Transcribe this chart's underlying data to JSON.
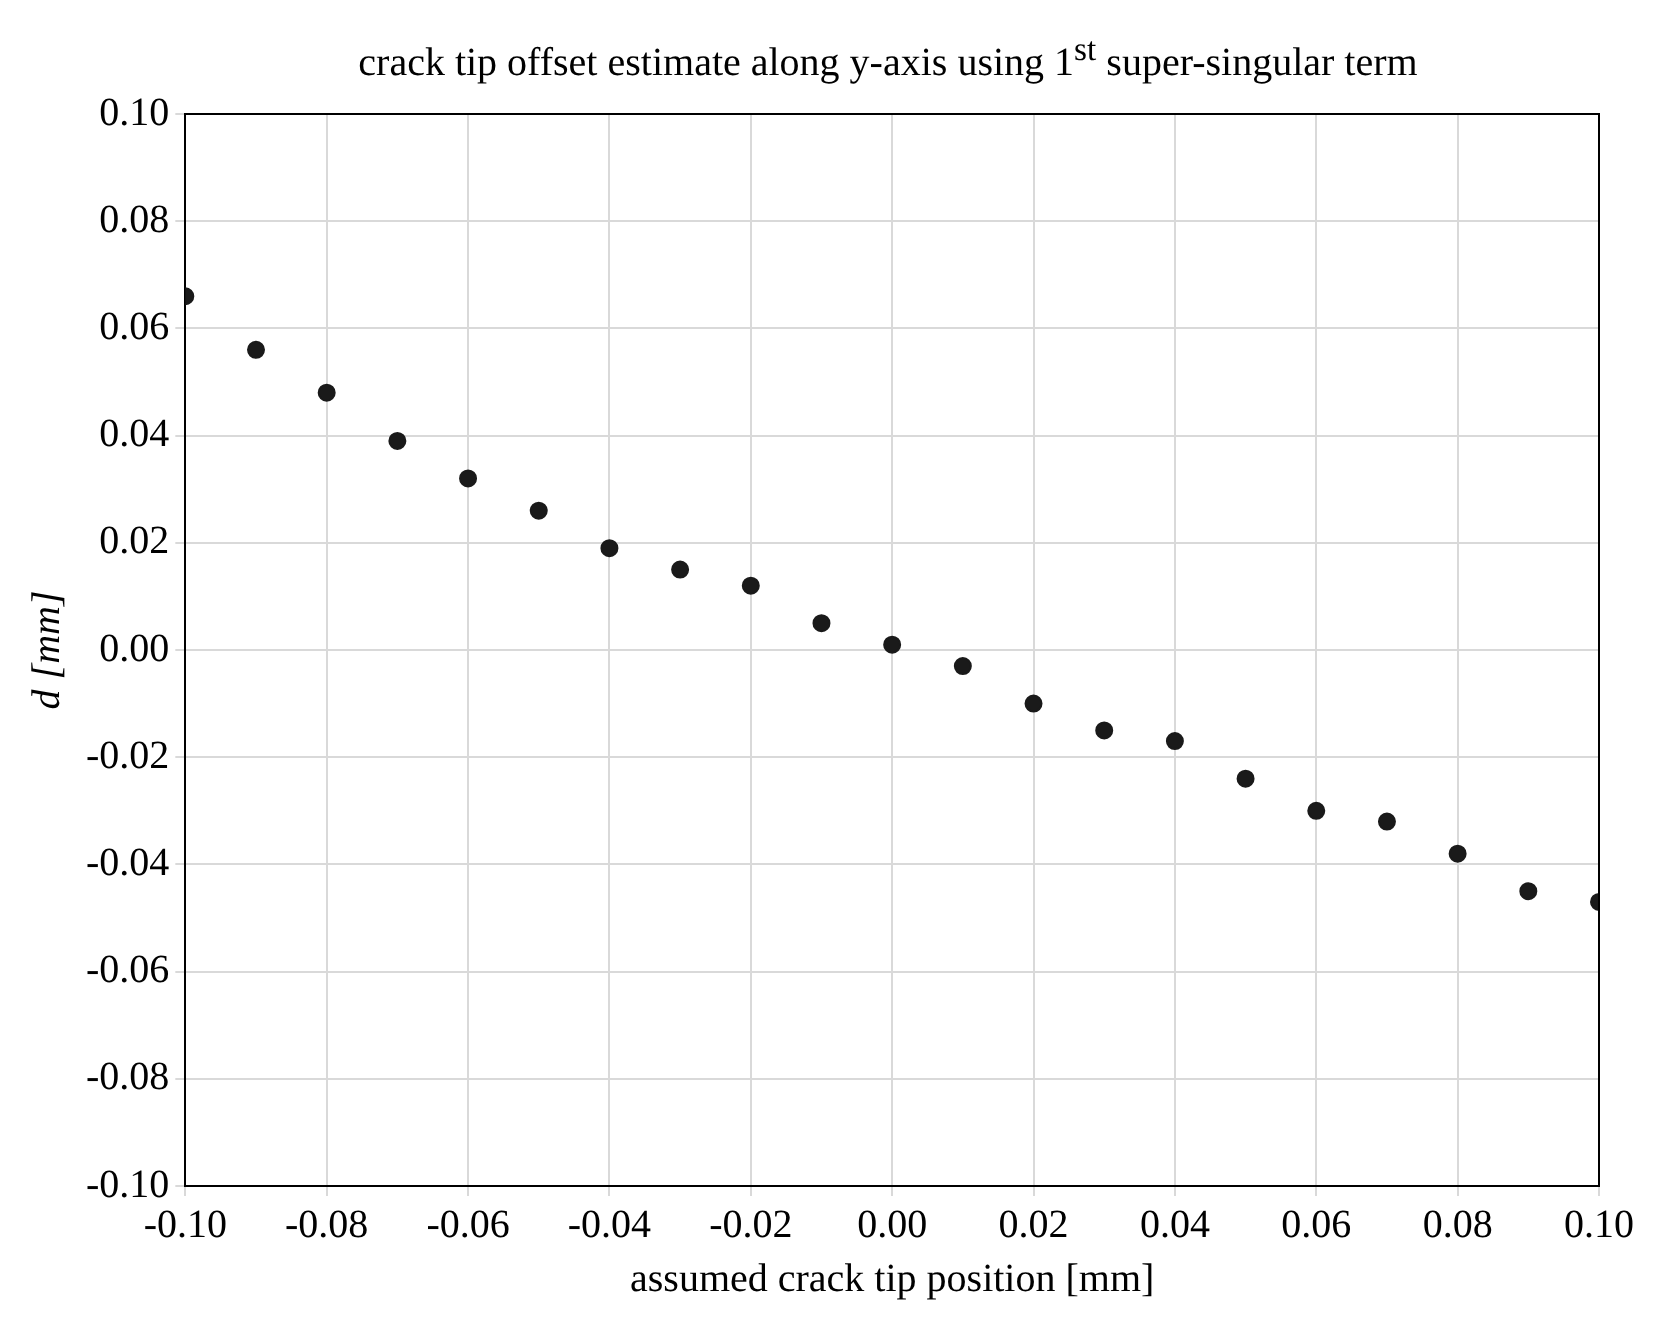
{
  "chart_data": {
    "type": "scatter",
    "title": "crack tip offset estimate along y-axis using 1$^{st}$ super-singular term",
    "xlabel": "assumed crack tip position [mm]",
    "ylabel": "d [mm]",
    "x": [
      -0.1,
      -0.09,
      -0.08,
      -0.07,
      -0.06,
      -0.05,
      -0.04,
      -0.03,
      -0.02,
      -0.01,
      0.0,
      0.01,
      0.02,
      0.03,
      0.04,
      0.05,
      0.06,
      0.07,
      0.08,
      0.09,
      0.1
    ],
    "series": [
      {
        "color": "#1a1a1a",
        "values": [
          0.066,
          0.056,
          0.048,
          0.039,
          0.032,
          0.026,
          0.019,
          0.015,
          0.012,
          0.005,
          0.001,
          -0.003,
          -0.01,
          -0.015,
          -0.017,
          -0.024,
          -0.03,
          -0.032,
          -0.038,
          -0.045,
          -0.047
        ]
      }
    ],
    "xlim": [
      -0.1,
      0.1
    ],
    "ylim": [
      -0.1,
      0.1
    ],
    "xticks": [
      {
        "value": -0.1,
        "label": "-0.10"
      },
      {
        "value": -0.08,
        "label": "-0.08"
      },
      {
        "value": -0.06,
        "label": "-0.06"
      },
      {
        "value": -0.04,
        "label": "-0.04"
      },
      {
        "value": -0.02,
        "label": "-0.02"
      },
      {
        "value": 0,
        "label": "0.00"
      },
      {
        "value": 0.02,
        "label": "0.02"
      },
      {
        "value": 0.04,
        "label": "0.04"
      },
      {
        "value": 0.06,
        "label": "0.06"
      },
      {
        "value": 0.08,
        "label": "0.08"
      },
      {
        "value": 0.1,
        "label": "0.10"
      }
    ],
    "yticks": [
      {
        "value": -0.1,
        "label": "-0.10"
      },
      {
        "value": -0.08,
        "label": "-0.08"
      },
      {
        "value": -0.06,
        "label": "-0.06"
      },
      {
        "value": -0.04,
        "label": "-0.04"
      },
      {
        "value": -0.02,
        "label": "-0.02"
      },
      {
        "value": 0,
        "label": "0.00"
      },
      {
        "value": 0.02,
        "label": "0.02"
      },
      {
        "value": 0.04,
        "label": "0.04"
      },
      {
        "value": 0.06,
        "label": "0.06"
      },
      {
        "value": 0.08,
        "label": "0.08"
      },
      {
        "value": 0.1,
        "label": "0.10"
      }
    ],
    "grid": true,
    "marker": "circle",
    "legend": false
  }
}
